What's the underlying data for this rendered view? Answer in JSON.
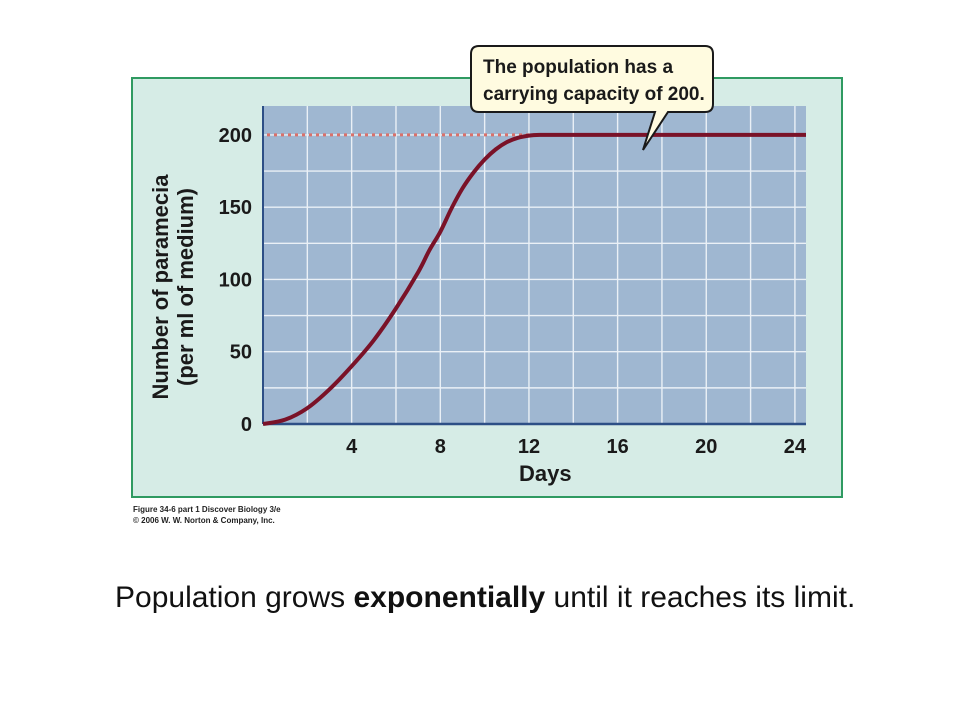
{
  "chart_data": {
    "type": "line",
    "xlabel": "Days",
    "ylabel": [
      "Number of paramecia",
      "(per ml of medium)"
    ],
    "xlim": [
      0,
      24.5
    ],
    "ylim": [
      0,
      220
    ],
    "x_ticks": [
      4,
      8,
      12,
      16,
      20,
      24
    ],
    "y_ticks": [
      0,
      50,
      100,
      150,
      200
    ],
    "grid": true,
    "series": [
      {
        "x": [
          0,
          1,
          2,
          3,
          4,
          5,
          6,
          7,
          7.5,
          8,
          8.5,
          9,
          9.5,
          10,
          10.5,
          11,
          11.5,
          12,
          12.5,
          13,
          14,
          16,
          18,
          20,
          22,
          24.5
        ],
        "y": [
          0,
          3,
          11,
          24,
          40,
          58,
          80,
          105,
          120,
          133,
          149,
          163,
          174,
          183,
          190,
          195,
          198,
          199.5,
          200,
          200,
          200,
          200,
          200,
          200,
          200,
          200
        ],
        "color": "#7a1228"
      }
    ],
    "reference_line": {
      "y": 200,
      "x_end": 12.5,
      "style": "dotted",
      "color": "#d9706a"
    },
    "annotation": {
      "lines": [
        "The population has a",
        "carrying capacity of 200."
      ]
    }
  },
  "credit": {
    "line1": "Figure 34-6 part 1  Discover Biology 3/e",
    "line2": "© 2006 W. W. Norton & Company, Inc."
  },
  "caption": {
    "before": "Population grows ",
    "bold": "exponentially",
    "after": " until it reaches its limit."
  },
  "colors": {
    "panel_bg": "#d6ece6",
    "panel_border": "#2f9a61",
    "plot_bg": "#9fb7d1",
    "grid": "#eaf0f6",
    "axis": "#2d4f86",
    "curve": "#7a1228",
    "dotted": "#d9706a"
  }
}
